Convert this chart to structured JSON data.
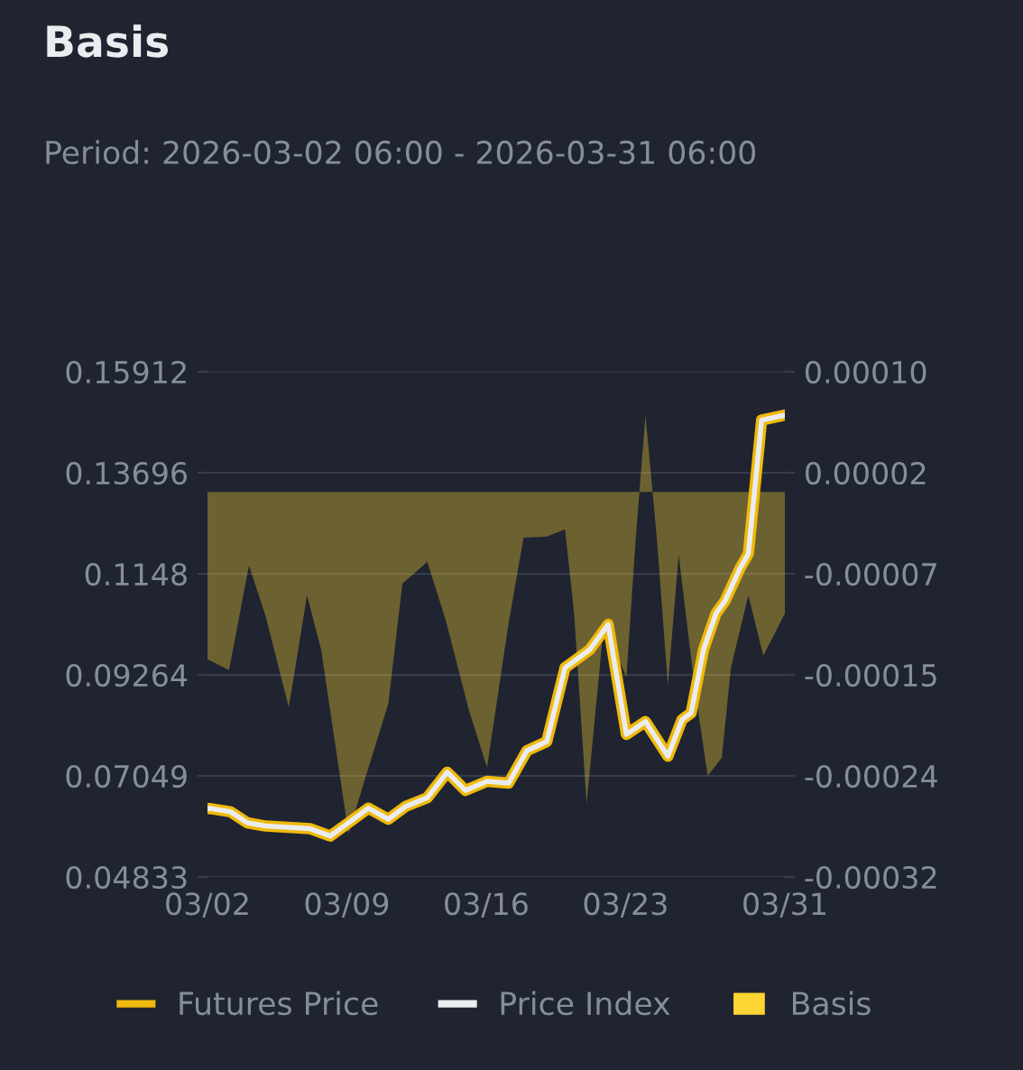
{
  "chart_data": {
    "type": "line",
    "title": "Basis",
    "subtitle": "Period: 2026-03-02 06:00 - 2026-03-31 06:00",
    "xlim": [
      "2026-03-02T06:00",
      "2026-03-31T06:00"
    ],
    "xticks": [
      {
        "value": "2026-03-02T06:00",
        "label": "03/02"
      },
      {
        "value": "2026-03-09T06:00",
        "label": "03/09"
      },
      {
        "value": "2026-03-16T06:00",
        "label": "03/16"
      },
      {
        "value": "2026-03-23T06:00",
        "label": "03/23"
      },
      {
        "value": "2026-03-31T06:00",
        "label": "03/31"
      }
    ],
    "ylim": [
      0.04833,
      0.15912
    ],
    "yticks": [
      0.04833,
      0.07049,
      0.09264,
      0.1148,
      0.13696,
      0.15912
    ],
    "y2lim": [
      -0.00032,
      0.0001
    ],
    "y2ticks": [
      {
        "value": -0.00032,
        "label": "-0.00032"
      },
      {
        "value": -0.000236,
        "label": "-0.00024"
      },
      {
        "value": -0.000152,
        "label": "-0.00015"
      },
      {
        "value": -6.8e-05,
        "label": "-0.00007"
      },
      {
        "value": 1.6e-05,
        "label": "0.00002"
      },
      {
        "value": 0.0001,
        "label": "0.00010"
      }
    ],
    "grid": "y",
    "legend": "bottom",
    "marker": "none",
    "line_style": "solid",
    "series": [
      {
        "name": "Basis",
        "type": "area",
        "axis": "y2",
        "color": "#fcd535",
        "x": [
          "2026-03-02T06:00",
          "2026-03-03T08:00",
          "2026-03-04T08:00",
          "2026-03-05T04:00",
          "2026-03-06T08:00",
          "2026-03-07T06:00",
          "2026-03-07T23:00",
          "2026-03-09T08:00",
          "2026-03-10T05:00",
          "2026-03-11T08:00",
          "2026-03-12T01:00",
          "2026-03-13T07:00",
          "2026-03-14T05:00",
          "2026-03-15T09:00",
          "2026-03-16T07:00",
          "2026-03-17T09:00",
          "2026-03-18T03:00",
          "2026-03-19T07:00",
          "2026-03-20T05:00",
          "2026-03-20T16:00",
          "2026-03-21T07:00",
          "2026-03-22T04:00",
          "2026-03-23T07:00",
          "2026-03-23T18:00",
          "2026-03-24T06:00",
          "2026-03-24T20:00",
          "2026-03-25T09:00",
          "2026-03-25T22:00",
          "2026-03-26T17:00",
          "2026-03-27T09:00",
          "2026-03-28T02:00",
          "2026-03-28T13:00",
          "2026-03-29T10:00",
          "2026-03-30T04:00",
          "2026-03-30T19:00",
          "2026-03-31T06:00"
        ],
        "values": [
          -0.000139,
          -0.000148,
          -6.1e-05,
          -0.000103,
          -0.000179,
          -8.6e-05,
          -0.000131,
          -0.000284,
          -0.000236,
          -0.000176,
          -7.6e-05,
          -5.8e-05,
          -0.000106,
          -0.000181,
          -0.000229,
          -0.000109,
          -3.8e-05,
          -3.7e-05,
          -3.1e-05,
          -0.000101,
          -0.000259,
          -0.000109,
          -0.000154,
          -4.1e-05,
          6.4e-05,
          -4.1e-05,
          -0.000161,
          -5.2e-05,
          -0.000161,
          -0.000236,
          -0.000221,
          -0.000146,
          -8.6e-05,
          -0.000136,
          -0.000116,
          -0.000101
        ]
      },
      {
        "name": "Futures Price",
        "axis": "y",
        "color": "#f0b90b",
        "x": [
          "2026-03-02T06:00",
          "2026-03-02T10:00",
          "2026-03-03T10:00",
          "2026-03-04T06:00",
          "2026-03-05T04:00",
          "2026-03-07T10:00",
          "2026-03-08T10:00",
          "2026-03-09T08:00",
          "2026-03-10T08:00",
          "2026-03-11T08:00",
          "2026-03-12T05:00",
          "2026-03-13T07:00",
          "2026-03-14T07:00",
          "2026-03-15T05:00",
          "2026-03-16T07:00",
          "2026-03-17T09:00",
          "2026-03-18T07:00",
          "2026-03-19T07:00",
          "2026-03-20T05:00",
          "2026-03-21T11:00",
          "2026-03-22T09:00",
          "2026-03-23T07:00",
          "2026-03-24T06:00",
          "2026-03-25T09:00",
          "2026-03-26T02:00",
          "2026-03-26T13:00",
          "2026-03-27T04:00",
          "2026-03-27T19:00",
          "2026-03-28T06:00",
          "2026-03-29T00:00",
          "2026-03-29T10:00",
          "2026-03-30T02:00",
          "2026-03-31T06:00"
        ],
        "values": [
          0.0633,
          0.0633,
          0.0626,
          0.0602,
          0.0595,
          0.0589,
          0.0573,
          0.0602,
          0.0634,
          0.061,
          0.0638,
          0.0657,
          0.0713,
          0.0673,
          0.0693,
          0.0689,
          0.076,
          0.078,
          0.0942,
          0.0982,
          0.1037,
          0.0796,
          0.0824,
          0.0748,
          0.0828,
          0.0843,
          0.0982,
          0.1061,
          0.1089,
          0.116,
          0.1192,
          0.1485,
          0.1496
        ]
      },
      {
        "name": "Price Index",
        "axis": "y",
        "color": "#eaecef",
        "x": [
          "2026-03-02T06:00",
          "2026-03-02T10:00",
          "2026-03-03T10:00",
          "2026-03-04T06:00",
          "2026-03-05T04:00",
          "2026-03-07T10:00",
          "2026-03-08T10:00",
          "2026-03-09T08:00",
          "2026-03-10T08:00",
          "2026-03-11T08:00",
          "2026-03-12T05:00",
          "2026-03-13T07:00",
          "2026-03-14T07:00",
          "2026-03-15T05:00",
          "2026-03-16T07:00",
          "2026-03-17T09:00",
          "2026-03-18T07:00",
          "2026-03-19T07:00",
          "2026-03-20T05:00",
          "2026-03-21T11:00",
          "2026-03-22T09:00",
          "2026-03-23T07:00",
          "2026-03-24T06:00",
          "2026-03-25T09:00",
          "2026-03-26T02:00",
          "2026-03-26T13:00",
          "2026-03-27T04:00",
          "2026-03-27T19:00",
          "2026-03-28T06:00",
          "2026-03-29T00:00",
          "2026-03-29T10:00",
          "2026-03-30T02:00",
          "2026-03-31T06:00"
        ],
        "values": [
          0.0633,
          0.0633,
          0.0626,
          0.0602,
          0.0595,
          0.0589,
          0.0573,
          0.0602,
          0.0634,
          0.061,
          0.0638,
          0.0657,
          0.0713,
          0.0673,
          0.0693,
          0.0689,
          0.076,
          0.078,
          0.0942,
          0.0982,
          0.1037,
          0.0796,
          0.0824,
          0.0748,
          0.0828,
          0.0843,
          0.0982,
          0.1061,
          0.1089,
          0.116,
          0.1192,
          0.1485,
          0.1496
        ]
      }
    ]
  }
}
